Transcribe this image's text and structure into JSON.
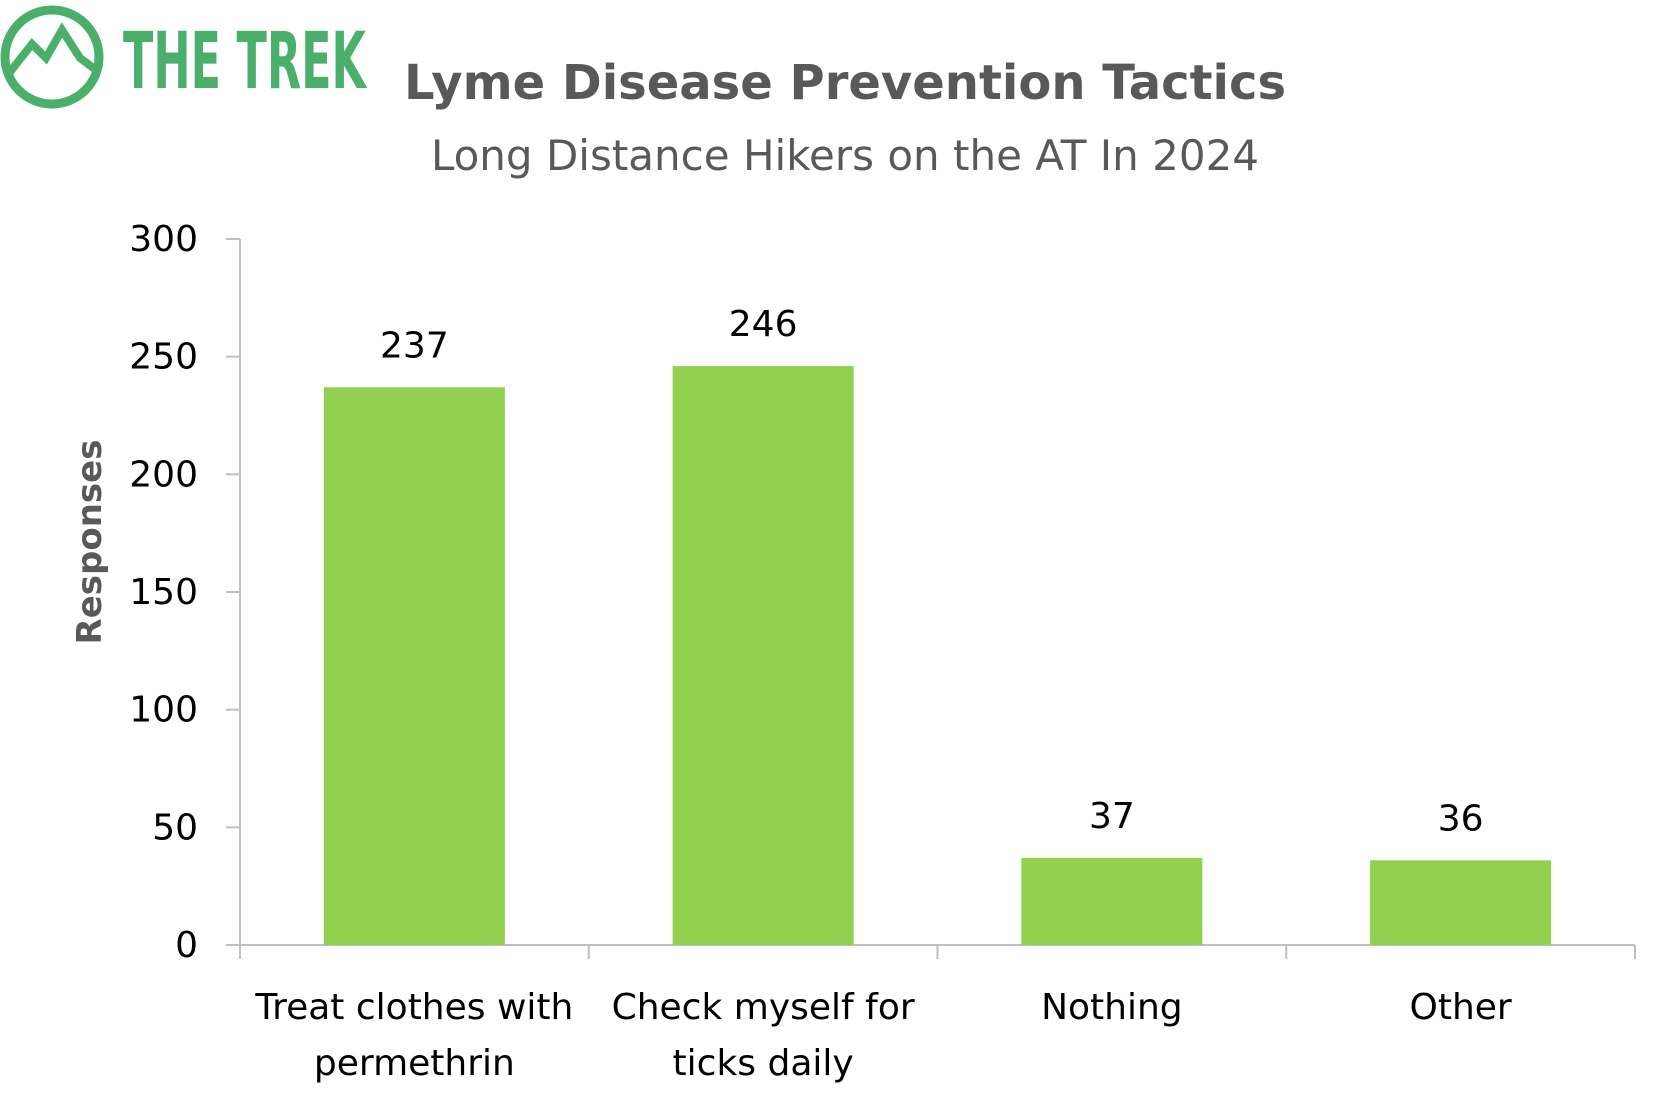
{
  "brand": {
    "name": "THE TREK",
    "color": "#4aaf6a",
    "icon": "mountain-circle-logo-icon"
  },
  "chart_data": {
    "type": "bar",
    "title": "Lyme Disease Prevention Tactics",
    "subtitle": "Long Distance Hikers on the AT In 2024",
    "xlabel": "",
    "ylabel": "Responses",
    "ylim": [
      0,
      300
    ],
    "yticks": [
      0,
      50,
      100,
      150,
      200,
      250,
      300
    ],
    "categories": [
      [
        "Treat clothes with",
        "permethrin"
      ],
      [
        "Check myself for",
        "ticks daily"
      ],
      [
        "Nothing"
      ],
      [
        "Other"
      ]
    ],
    "values": [
      237,
      246,
      37,
      36
    ],
    "data_labels": [
      "237",
      "246",
      "37",
      "36"
    ],
    "bar_color": "#92d050",
    "axis_color": "#bfbfbf",
    "grid": false,
    "legend": "none"
  }
}
